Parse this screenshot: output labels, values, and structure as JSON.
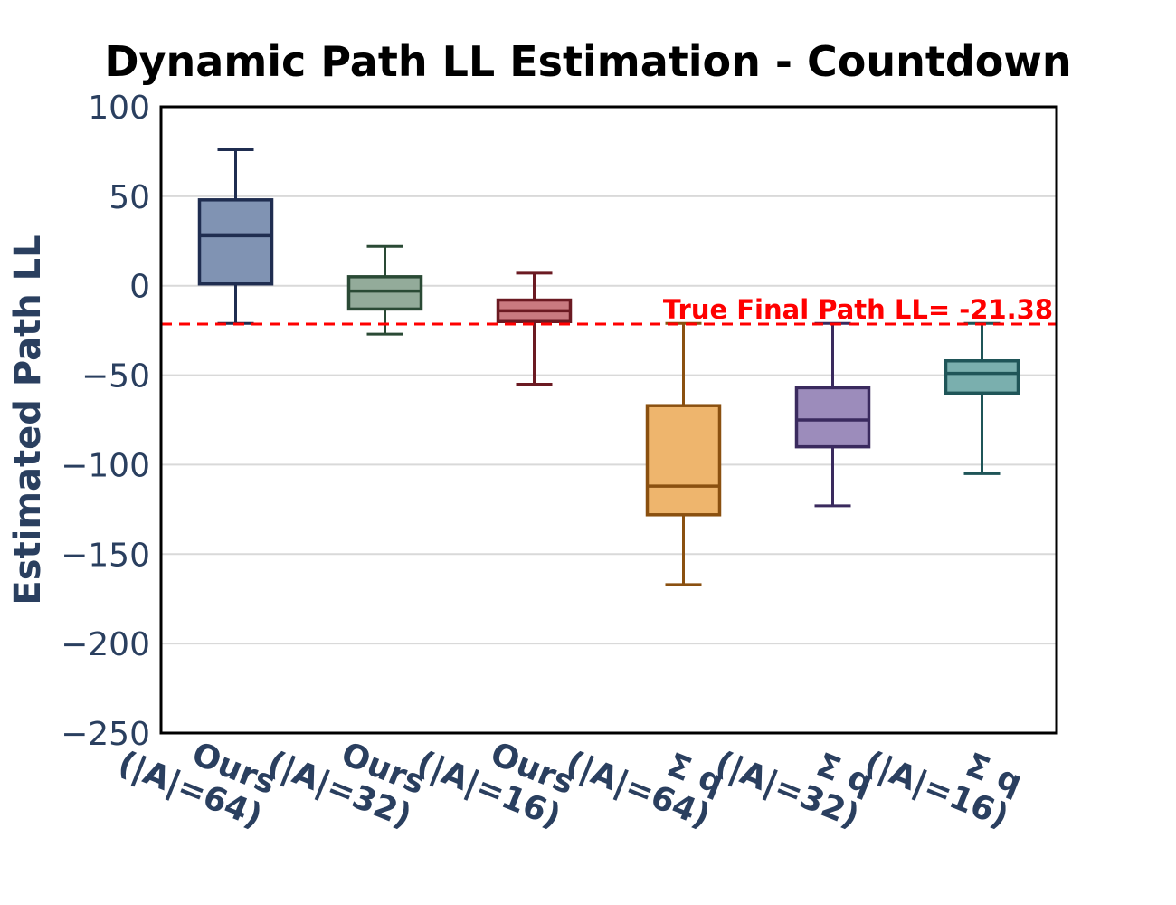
{
  "chart_data": {
    "type": "box",
    "title": "Dynamic Path LL Estimation - Countdown",
    "xlabel": "",
    "ylabel": "Estimated Path LL",
    "ylim": [
      -250,
      100
    ],
    "yticks": [
      100,
      50,
      0,
      -50,
      -100,
      -150,
      -200,
      -250
    ],
    "ytick_labels": [
      "100",
      "50",
      "0",
      "−50",
      "−100",
      "−150",
      "−200",
      "−250"
    ],
    "grid": true,
    "categories": [
      {
        "line1": "Ours",
        "line2": "(|A|=64)"
      },
      {
        "line1": "Ours",
        "line2": "(|A|=32)"
      },
      {
        "line1": "Ours",
        "line2": "(|A|=16)"
      },
      {
        "line1": "Σ q",
        "line2": "(|A|=64)"
      },
      {
        "line1": "Σ q",
        "line2": "(|A|=32)"
      },
      {
        "line1": "Σ q",
        "line2": "(|A|=16)"
      }
    ],
    "boxes": [
      {
        "whisker_low": -21,
        "q1": 1,
        "median": 28,
        "q3": 48,
        "whisker_high": 76,
        "fill": "#8093b3",
        "stroke": "#1f2d50"
      },
      {
        "whisker_low": -27,
        "q1": -13,
        "median": -3,
        "q3": 5,
        "whisker_high": 22,
        "fill": "#93ab9a",
        "stroke": "#2a4a35"
      },
      {
        "whisker_low": -55,
        "q1": -20,
        "median": -14,
        "q3": -8,
        "whisker_high": 7,
        "fill": "#c97a80",
        "stroke": "#6b1a22"
      },
      {
        "whisker_low": -167,
        "q1": -128,
        "median": -112,
        "q3": -67,
        "whisker_high": -21,
        "fill": "#eeb56d",
        "stroke": "#8a5010"
      },
      {
        "whisker_low": -123,
        "q1": -90,
        "median": -75,
        "q3": -57,
        "whisker_high": -21,
        "fill": "#9c8cbb",
        "stroke": "#3a2a5e"
      },
      {
        "whisker_low": -105,
        "q1": -60,
        "median": -49,
        "q3": -42,
        "whisker_high": -21,
        "fill": "#7aafae",
        "stroke": "#1f5558"
      }
    ],
    "reference_line": {
      "value": -21.38,
      "label": "True Final Path LL= -21.38",
      "color": "#ff0000"
    }
  }
}
